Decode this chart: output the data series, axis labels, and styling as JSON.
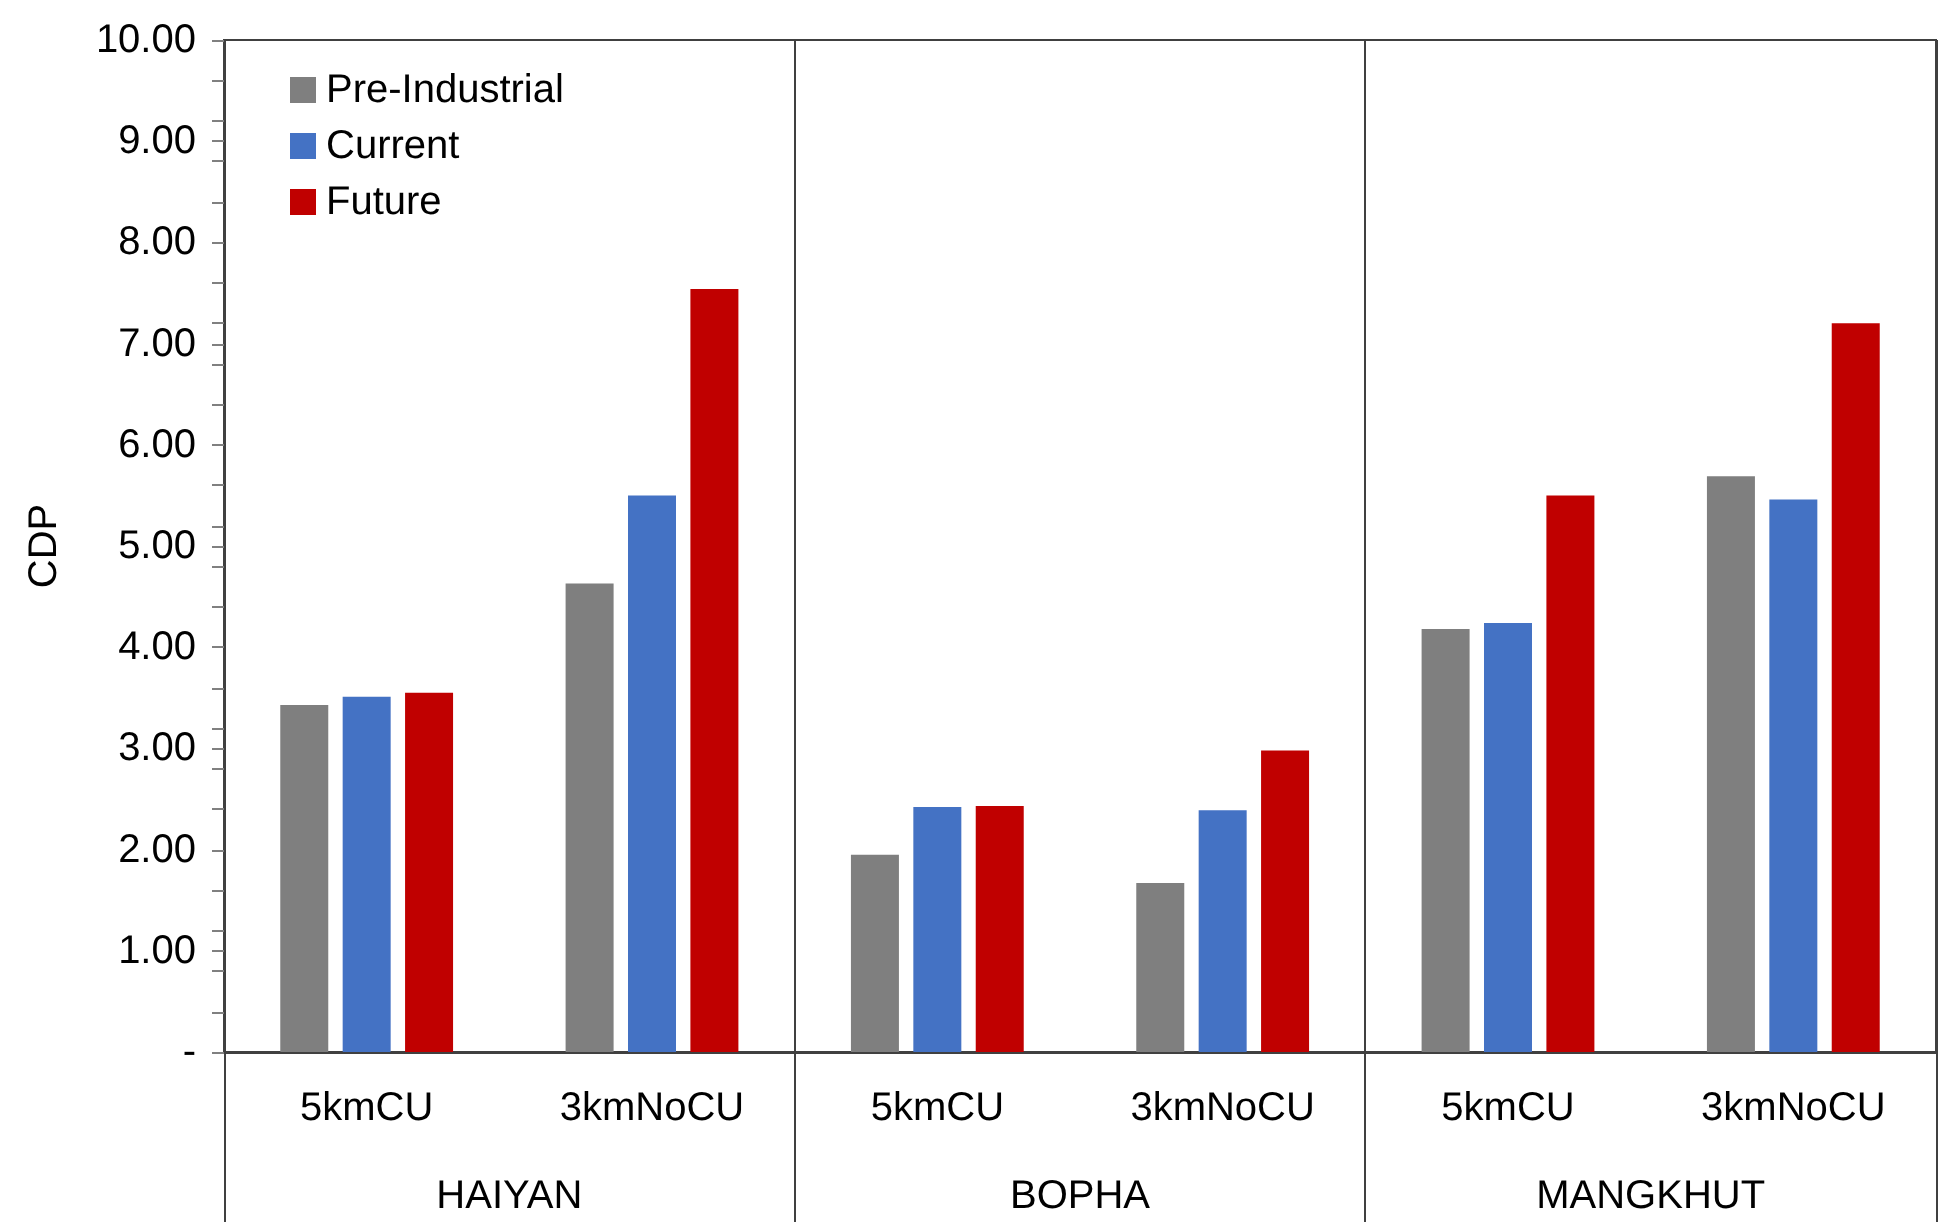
{
  "chart_data": {
    "type": "bar",
    "ylabel": "CDP",
    "categories": [
      "5kmCU",
      "3kmNoCU",
      "5kmCU",
      "3kmNoCU",
      "5kmCU",
      "3kmNoCU"
    ],
    "series": [
      {
        "name": "Pre-Industrial",
        "color": "#7f7f7f",
        "values": [
          3.43,
          4.63,
          1.95,
          1.67,
          4.18,
          5.69
        ]
      },
      {
        "name": "Current",
        "color": "#4472c4",
        "values": [
          3.51,
          5.5,
          2.42,
          2.39,
          4.24,
          5.46
        ]
      },
      {
        "name": "Future",
        "color": "#c00000",
        "values": [
          3.55,
          7.54,
          2.43,
          2.98,
          5.5,
          7.2
        ]
      }
    ],
    "ylim": [
      0,
      10
    ],
    "yticks": [
      {
        "value": 0,
        "label": "-"
      },
      {
        "value": 1,
        "label": "1.00"
      },
      {
        "value": 2,
        "label": "2.00"
      },
      {
        "value": 3,
        "label": "3.00"
      },
      {
        "value": 4,
        "label": "4.00"
      },
      {
        "value": 5,
        "label": "5.00"
      },
      {
        "value": 6,
        "label": "6.00"
      },
      {
        "value": 7,
        "label": "7.00"
      },
      {
        "value": 8,
        "label": "8.00"
      },
      {
        "value": 9,
        "label": "9.00"
      },
      {
        "value": 10,
        "label": "10.00"
      }
    ],
    "annotations": [
      "HAIYAN",
      "BOPHA",
      "MANGKHUT"
    ],
    "legend": "top left",
    "grid": false
  }
}
